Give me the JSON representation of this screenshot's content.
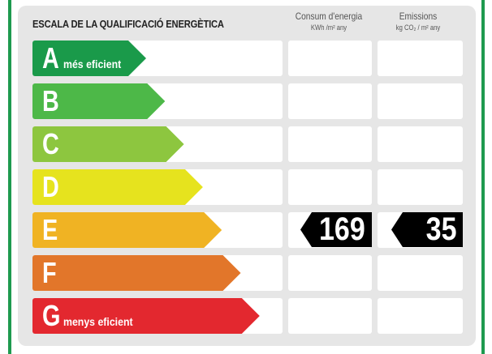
{
  "title": "ESCALA DE LA QUALIFICACIÓ ENERGÈTICA",
  "columns": [
    {
      "label": "Consum d'energia",
      "unit": "KWh /m² any"
    },
    {
      "label": "Emissions",
      "unit": "kg CO₂ / m² any"
    }
  ],
  "ratings": [
    {
      "letter": "A",
      "label": "més eficient",
      "color": "#1a9a4a"
    },
    {
      "letter": "B",
      "label": "",
      "color": "#4db848"
    },
    {
      "letter": "C",
      "label": "",
      "color": "#8dc63f"
    },
    {
      "letter": "D",
      "label": "",
      "color": "#e6e31e"
    },
    {
      "letter": "E",
      "label": "",
      "color": "#f0b323"
    },
    {
      "letter": "F",
      "label": "",
      "color": "#e2762a"
    },
    {
      "letter": "G",
      "label": "menys eficient",
      "color": "#e3282f"
    }
  ],
  "current_rating": "E",
  "energy_value": "169",
  "emissions_value": "35"
}
